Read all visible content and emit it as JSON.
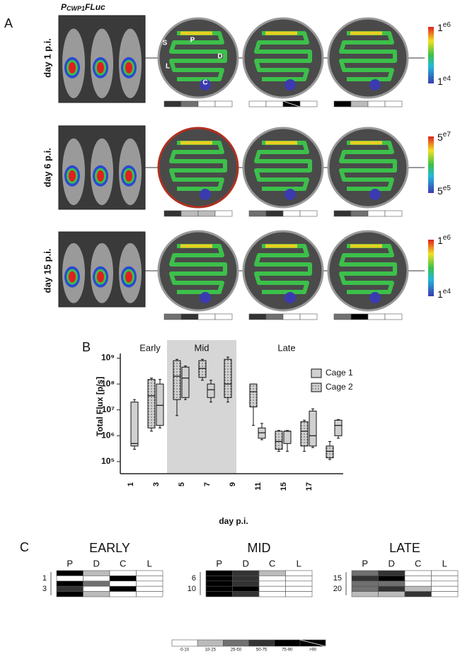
{
  "panel_a": {
    "label": "A",
    "title_main": "P",
    "title_sub": "CWP1",
    "title_rest": "FLuc",
    "gut_labels": [
      "S",
      "P",
      "D",
      "L",
      "C"
    ],
    "rows": [
      {
        "label": "day 1 p.i.",
        "scale_max": {
          "base": "1",
          "exp": "e6"
        },
        "scale_min": {
          "base": "1",
          "exp": "e4"
        },
        "dishes": [
          [
            "50-75",
            "25-50",
            "0-10",
            "0-10"
          ],
          [
            "0-10",
            "0-10",
            ">90",
            "0-10"
          ],
          [
            "75-90",
            "10-25",
            "0-10",
            "0-10"
          ]
        ]
      },
      {
        "label": "day 6 p.i.",
        "scale_max": {
          "base": "5",
          "exp": "e7"
        },
        "scale_min": {
          "base": "5",
          "exp": "e5"
        },
        "dishes": [
          [
            "50-75",
            "10-25",
            "10-25",
            "0-10"
          ],
          [
            "25-50",
            "50-75",
            "0-10",
            "0-10"
          ],
          [
            "50-75",
            "25-50",
            "0-10",
            "0-10"
          ]
        ]
      },
      {
        "label": "day 15 p.i.",
        "scale_max": {
          "base": "1",
          "exp": "e6"
        },
        "scale_min": {
          "base": "1",
          "exp": "e4"
        },
        "dishes": [
          [
            "25-50",
            "50-75",
            "0-10",
            "0-10"
          ],
          [
            "50-75",
            "25-50",
            "0-10",
            "0-10"
          ],
          [
            "25-50",
            "75-90",
            "0-10",
            "0-10"
          ]
        ]
      }
    ]
  },
  "chart_data": {
    "type": "box",
    "panel_label": "B",
    "ylabel": "Total Flux [p/s]",
    "xlabel": "day p.i.",
    "regions": [
      "Early",
      "Mid",
      "Late"
    ],
    "categories": [
      "1",
      "3",
      "5",
      "7",
      "9",
      "11",
      "15",
      "17",
      null
    ],
    "log_y": true,
    "ylim": [
      34000,
      5000000000
    ],
    "yticks": [
      {
        "value": 100000,
        "label": "10⁵"
      },
      {
        "value": 1000000,
        "label": "10⁶"
      },
      {
        "value": 10000000,
        "label": "10⁷"
      },
      {
        "value": 100000000,
        "label": "10⁸"
      },
      {
        "value": 1000000000,
        "label": "10⁹"
      }
    ],
    "legend": "upper right",
    "series": [
      {
        "name": "Cage 1",
        "color": "#d0d0d0",
        "pattern": "solid",
        "values": [
          {
            "min": 300000,
            "q1": 400000,
            "median": 500000,
            "q3": 20000000,
            "max": 25000000
          },
          {
            "min": 2000000,
            "q1": 2500000,
            "median": 15000000,
            "q3": 100000000,
            "max": 150000000
          },
          {
            "min": 25000000,
            "q1": 30000000,
            "median": 170000000,
            "q3": 450000000,
            "max": 500000000
          },
          {
            "min": 20000000,
            "q1": 30000000,
            "median": 60000000,
            "q3": 100000000,
            "max": 140000000
          },
          null,
          {
            "min": 700000,
            "q1": 800000,
            "median": 1300000,
            "q3": 2000000,
            "max": 3000000
          },
          {
            "min": 250000,
            "q1": 500000,
            "median": 1500000,
            "q3": 1500000,
            "max": 1600000
          },
          {
            "min": 350000,
            "q1": 400000,
            "median": 1000000,
            "q3": 9000000,
            "max": 11000000
          },
          {
            "min": 800000,
            "q1": 1000000,
            "median": 2500000,
            "q3": 4000000,
            "max": 4200000
          }
        ]
      },
      {
        "name": "Cage 2",
        "color": "#d0d0d0",
        "pattern": "dots",
        "values": [
          null,
          {
            "min": 1500000,
            "q1": 2000000,
            "median": 35000000,
            "q3": 150000000,
            "max": 170000000
          },
          {
            "min": 6000000,
            "q1": 25000000,
            "median": 200000000,
            "q3": 800000000,
            "max": 900000000
          },
          {
            "min": 140000000,
            "q1": 180000000,
            "median": 400000000,
            "q3": 800000000,
            "max": 900000000
          },
          {
            "min": 20000000,
            "q1": 30000000,
            "median": 100000000,
            "q3": 900000000,
            "max": 1100000000
          },
          {
            "min": 2500000,
            "q1": 13000000,
            "median": 50000000,
            "q3": 100000000,
            "max": 100000000
          },
          {
            "min": 250000,
            "q1": 300000,
            "median": 600000,
            "q3": 1500000,
            "max": 1600000
          },
          {
            "min": 250000,
            "q1": 400000,
            "median": 1500000,
            "q3": 3500000,
            "max": 4000000
          },
          {
            "min": 120000,
            "q1": 140000,
            "median": 250000,
            "q3": 400000,
            "max": 600000
          }
        ]
      }
    ]
  },
  "panel_c": {
    "label": "C",
    "legend": [
      {
        "label": "0-10",
        "color": "#ffffff"
      },
      {
        "label": "10-25",
        "color": "#bbbbbb"
      },
      {
        "label": "25-50",
        "color": "#707070"
      },
      {
        "label": "50-75",
        "color": "#333333"
      },
      {
        "label": "75-90",
        "color": "#000000"
      },
      {
        "label": ">90",
        "color": "#000000",
        "slash": true
      }
    ],
    "grids": [
      {
        "title": "EARLY",
        "columns": [
          "P",
          "D",
          "C",
          "L"
        ],
        "row_labels": [
          null,
          "1",
          null,
          "3",
          null
        ],
        "cells": [
          [
            "75-90",
            "10-25",
            "0-10",
            "0-10"
          ],
          [
            "0-10",
            "0-10",
            "75-90",
            "0-10"
          ],
          [
            "75-90",
            "25-50",
            "0-10",
            "0-10"
          ],
          [
            "50-75",
            "0-10",
            "75-90",
            "0-10"
          ],
          [
            "75-90",
            "10-25",
            "0-10",
            "0-10"
          ]
        ]
      },
      {
        "title": "MID",
        "columns": [
          "P",
          "D",
          "C",
          "L"
        ],
        "row_labels": [
          null,
          "6",
          null,
          "10",
          null
        ],
        "cells": [
          [
            "75-90",
            "50-75",
            "10-25",
            "0-10"
          ],
          [
            "75-90",
            "50-75",
            "0-10",
            "0-10"
          ],
          [
            "75-90",
            "50-75",
            "0-10",
            "0-10"
          ],
          [
            "75-90",
            "75-90",
            "0-10",
            "0-10"
          ],
          [
            "75-90",
            "50-75",
            "0-10",
            "0-10"
          ]
        ]
      },
      {
        "title": "LATE",
        "columns": [
          "P",
          "D",
          "C",
          "L"
        ],
        "row_labels": [
          null,
          "15",
          null,
          "20",
          null
        ],
        "cells": [
          [
            "25-50",
            "50-75",
            "0-10",
            "0-10"
          ],
          [
            "50-75",
            "75-90",
            "0-10",
            "0-10"
          ],
          [
            "25-50",
            "25-50",
            "0-10",
            "0-10"
          ],
          [
            "25-50",
            "50-75",
            "10-25",
            "0-10"
          ],
          [
            "10-25",
            "10-25",
            "50-75",
            "0-10"
          ]
        ]
      }
    ]
  }
}
